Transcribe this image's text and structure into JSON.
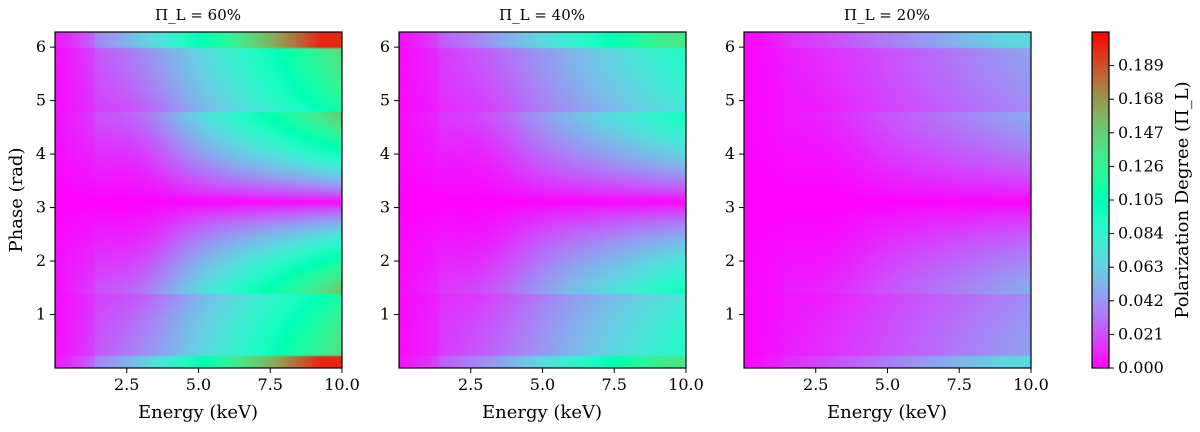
{
  "chart_data": [
    {
      "type": "heatmap",
      "title": "Π_L = 60%",
      "xlabel": "Energy (keV)",
      "ylabel": "Phase (rad)",
      "xlim": [
        0.0,
        10.0
      ],
      "ylim": [
        0.0,
        6.283
      ],
      "xticks": [
        "2.5",
        "5.0",
        "7.5",
        "10.0"
      ],
      "yticks": [
        "1",
        "2",
        "3",
        "4",
        "5",
        "6"
      ],
      "amplitude": 0.2
    },
    {
      "type": "heatmap",
      "title": "Π_L = 40%",
      "xlabel": "Energy (keV)",
      "ylabel": "",
      "xlim": [
        0.0,
        10.0
      ],
      "ylim": [
        0.0,
        6.283
      ],
      "xticks": [
        "2.5",
        "5.0",
        "7.5",
        "10.0"
      ],
      "yticks": [
        "1",
        "2",
        "3",
        "4",
        "5",
        "6"
      ],
      "amplitude": 0.133
    },
    {
      "type": "heatmap",
      "title": "Π_L = 20%",
      "xlabel": "Energy (keV)",
      "ylabel": "",
      "xlim": [
        0.0,
        10.0
      ],
      "ylim": [
        0.0,
        6.283
      ],
      "xticks": [
        "2.5",
        "5.0",
        "7.5",
        "10.0"
      ],
      "yticks": [
        "1",
        "2",
        "3",
        "4",
        "5",
        "6"
      ],
      "amplitude": 0.067
    }
  ],
  "colorbar": {
    "label": "Polarization Degree (Π_L)",
    "range": [
      0.0,
      0.21
    ],
    "colormap": "rainbow",
    "ticks": [
      "0.000",
      "0.021",
      "0.042",
      "0.063",
      "0.084",
      "0.105",
      "0.126",
      "0.147",
      "0.168",
      "0.189"
    ]
  }
}
